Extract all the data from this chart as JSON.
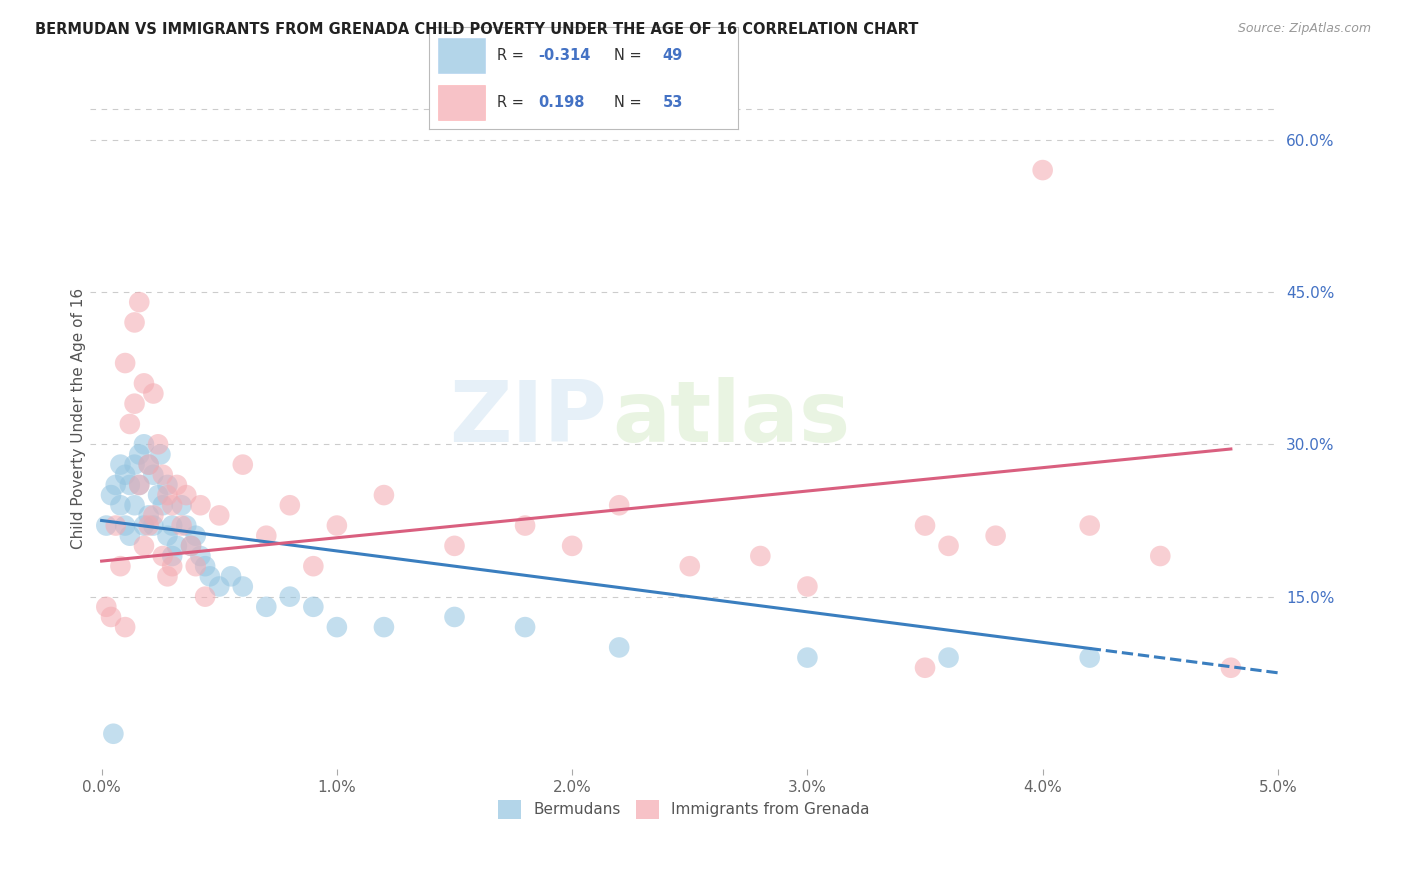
{
  "title": "BERMUDAN VS IMMIGRANTS FROM GRENADA CHILD POVERTY UNDER THE AGE OF 16 CORRELATION CHART",
  "source": "Source: ZipAtlas.com",
  "ylabel": "Child Poverty Under the Age of 16",
  "xlabel_ticks": [
    "0.0%",
    "1.0%",
    "2.0%",
    "3.0%",
    "4.0%",
    "5.0%"
  ],
  "xlabel_vals": [
    0.0,
    1.0,
    2.0,
    3.0,
    4.0,
    5.0
  ],
  "ylabel_ticks_right": [
    "15.0%",
    "30.0%",
    "45.0%",
    "60.0%"
  ],
  "ylabel_vals_right": [
    15.0,
    30.0,
    45.0,
    60.0
  ],
  "xlim": [
    -0.05,
    5.0
  ],
  "ylim": [
    -2.0,
    67.0
  ],
  "bermudans_x": [
    0.02,
    0.04,
    0.06,
    0.08,
    0.08,
    0.1,
    0.1,
    0.12,
    0.12,
    0.14,
    0.14,
    0.16,
    0.16,
    0.18,
    0.18,
    0.2,
    0.2,
    0.22,
    0.22,
    0.24,
    0.25,
    0.26,
    0.28,
    0.28,
    0.3,
    0.3,
    0.32,
    0.34,
    0.36,
    0.38,
    0.4,
    0.42,
    0.44,
    0.46,
    0.5,
    0.55,
    0.6,
    0.7,
    0.8,
    0.9,
    1.0,
    1.2,
    1.5,
    1.8,
    2.2,
    3.0,
    3.6,
    4.2,
    0.05
  ],
  "bermudans_y": [
    22.0,
    25.0,
    26.0,
    28.0,
    24.0,
    27.0,
    22.0,
    26.0,
    21.0,
    28.0,
    24.0,
    29.0,
    26.0,
    30.0,
    22.0,
    28.0,
    23.0,
    27.0,
    22.0,
    25.0,
    29.0,
    24.0,
    26.0,
    21.0,
    22.0,
    19.0,
    20.0,
    24.0,
    22.0,
    20.0,
    21.0,
    19.0,
    18.0,
    17.0,
    16.0,
    17.0,
    16.0,
    14.0,
    15.0,
    14.0,
    12.0,
    12.0,
    13.0,
    12.0,
    10.0,
    9.0,
    9.0,
    9.0,
    1.5
  ],
  "grenada_x": [
    0.02,
    0.04,
    0.06,
    0.08,
    0.1,
    0.1,
    0.12,
    0.14,
    0.14,
    0.16,
    0.16,
    0.18,
    0.18,
    0.2,
    0.2,
    0.22,
    0.22,
    0.24,
    0.26,
    0.26,
    0.28,
    0.28,
    0.3,
    0.3,
    0.32,
    0.34,
    0.36,
    0.38,
    0.4,
    0.42,
    0.44,
    0.5,
    0.6,
    0.7,
    0.8,
    0.9,
    1.0,
    1.2,
    1.5,
    1.8,
    2.0,
    2.2,
    2.5,
    2.8,
    3.0,
    3.5,
    3.5,
    3.6,
    3.8,
    4.0,
    4.2,
    4.5,
    4.8
  ],
  "grenada_y": [
    14.0,
    13.0,
    22.0,
    18.0,
    38.0,
    12.0,
    32.0,
    42.0,
    34.0,
    44.0,
    26.0,
    36.0,
    20.0,
    28.0,
    22.0,
    35.0,
    23.0,
    30.0,
    27.0,
    19.0,
    25.0,
    17.0,
    24.0,
    18.0,
    26.0,
    22.0,
    25.0,
    20.0,
    18.0,
    24.0,
    15.0,
    23.0,
    28.0,
    21.0,
    24.0,
    18.0,
    22.0,
    25.0,
    20.0,
    22.0,
    20.0,
    24.0,
    18.0,
    19.0,
    16.0,
    22.0,
    8.0,
    20.0,
    21.0,
    57.0,
    22.0,
    19.0,
    8.0
  ],
  "blue_intercept": 22.5,
  "blue_slope": -3.0,
  "pink_intercept": 18.5,
  "pink_slope": 2.3,
  "bermudans_R": -0.314,
  "bermudans_N": 49,
  "grenada_R": 0.198,
  "grenada_N": 53,
  "blue_color": "#93c4e0",
  "pink_color": "#f4a9b0",
  "blue_line_color": "#3a7ebf",
  "pink_line_color": "#d95f7f",
  "legend_label1": "Bermudans",
  "legend_label2": "Immigrants from Grenada",
  "watermark_zip": "ZIP",
  "watermark_atlas": "atlas",
  "background_color": "#ffffff",
  "grid_color": "#cccccc"
}
